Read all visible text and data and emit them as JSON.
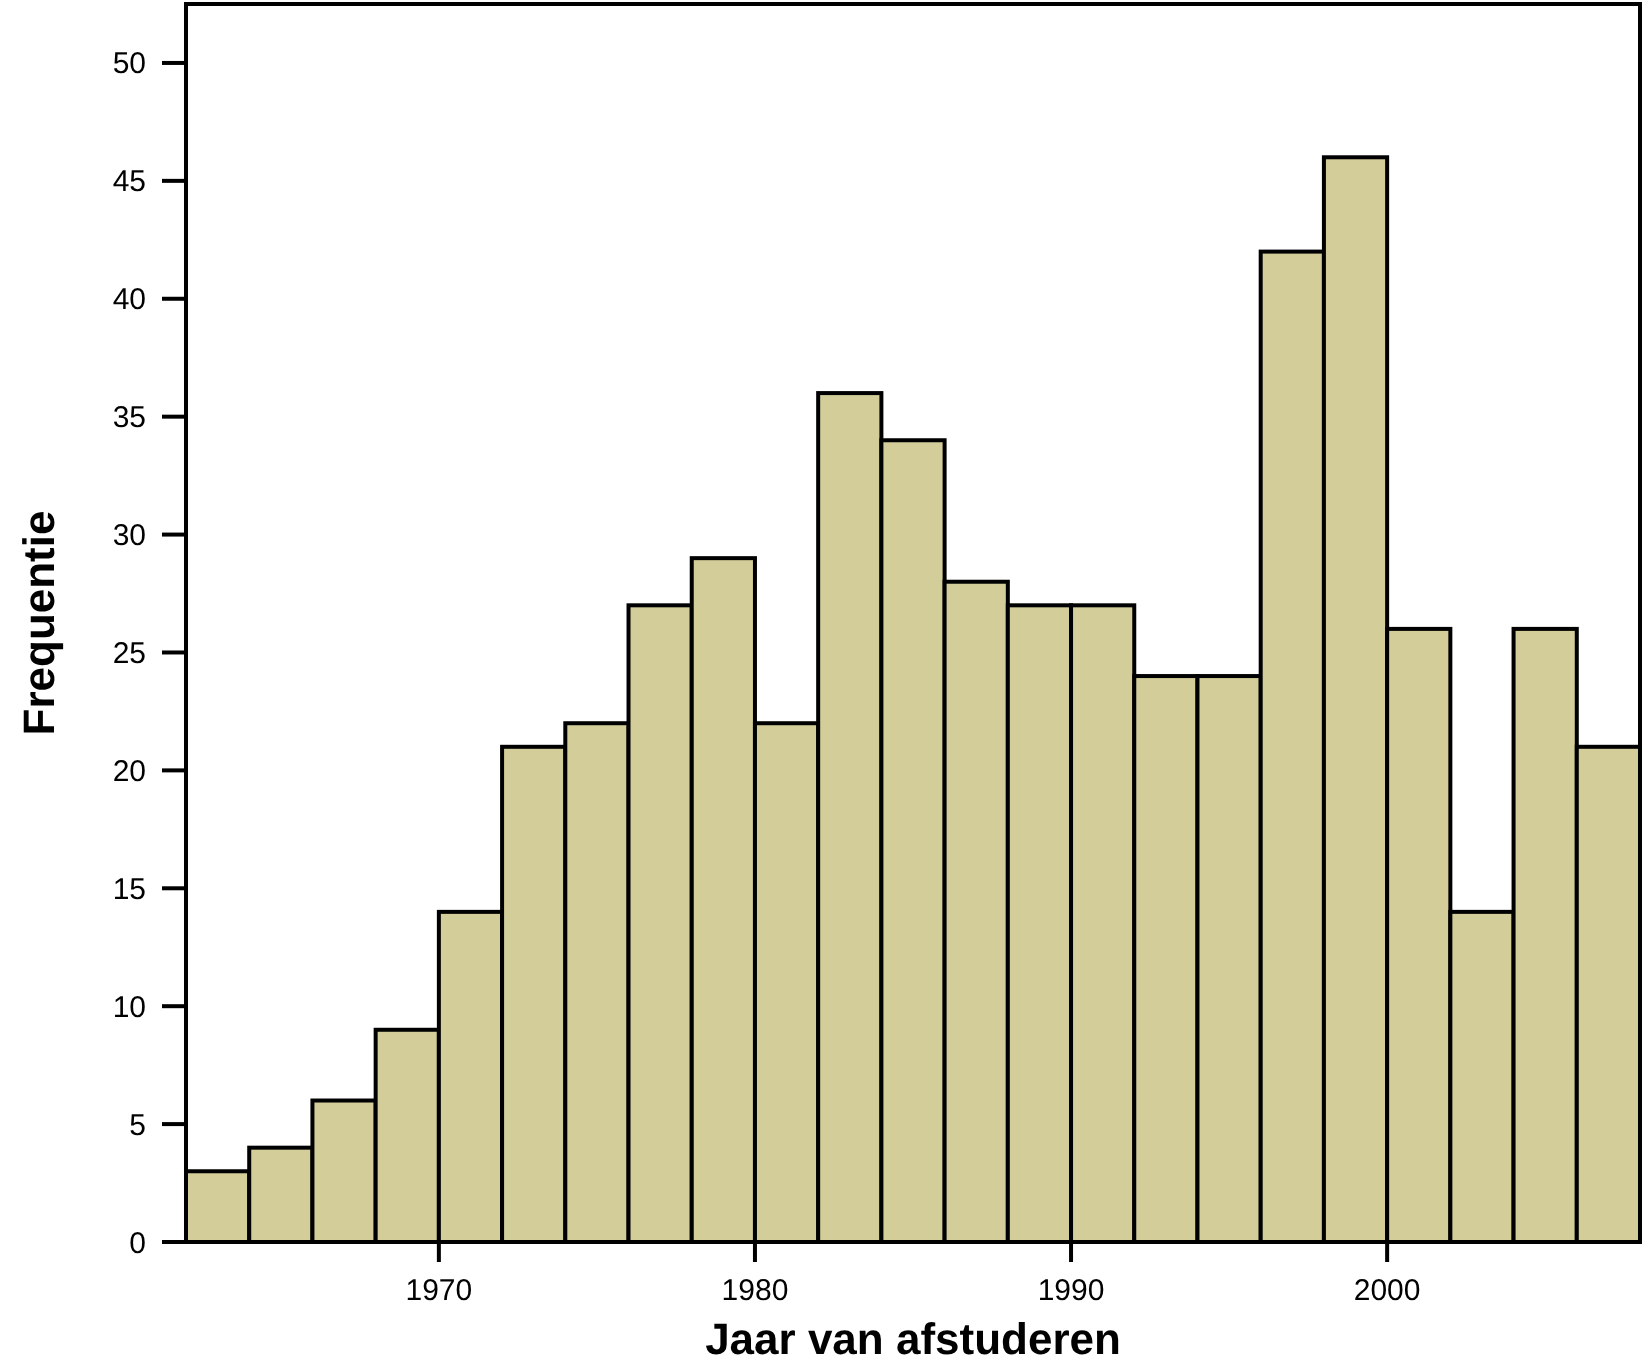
{
  "chart_data": {
    "type": "histogram",
    "xlabel": "Jaar van afstuderen",
    "ylabel": "Frequentie",
    "bins": [
      1962,
      1964,
      1966,
      1968,
      1970,
      1972,
      1974,
      1976,
      1978,
      1980,
      1982,
      1984,
      1986,
      1988,
      1990,
      1992,
      1994,
      1996,
      1998,
      2000,
      2002,
      2004,
      2006,
      2008
    ],
    "values": [
      3,
      4,
      6,
      9,
      14,
      21,
      22,
      27,
      29,
      22,
      36,
      34,
      28,
      27,
      27,
      24,
      24,
      42,
      46,
      26,
      14,
      26,
      21
    ],
    "color": "#d3cd99",
    "xlim": [
      1962,
      2008
    ],
    "xticks": [
      1970,
      1980,
      1990,
      2000
    ],
    "ylim": [
      0,
      52.5
    ],
    "yticks": [
      0,
      5,
      10,
      15,
      20,
      25,
      30,
      35,
      40,
      45,
      50
    ],
    "grid": false
  }
}
